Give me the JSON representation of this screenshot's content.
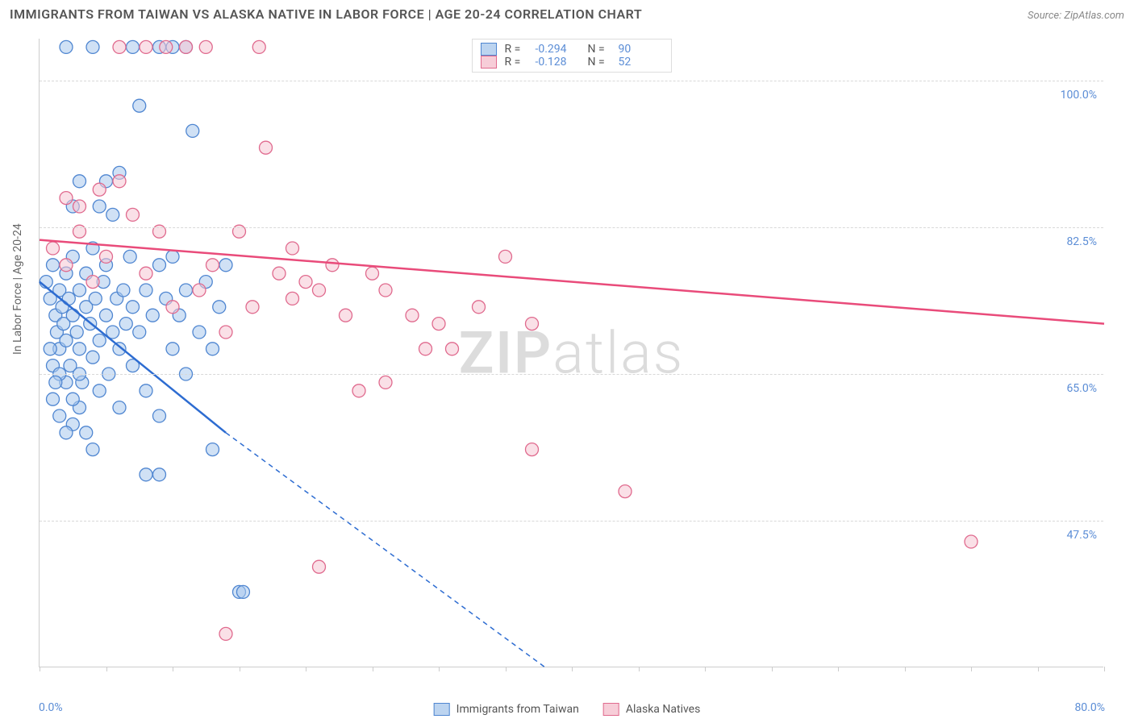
{
  "title": "IMMIGRANTS FROM TAIWAN VS ALASKA NATIVE IN LABOR FORCE | AGE 20-24 CORRELATION CHART",
  "source": "Source: ZipAtlas.com",
  "watermark_a": "ZIP",
  "watermark_b": "atlas",
  "chart": {
    "type": "scatter",
    "background_color": "#ffffff",
    "grid_color": "#d8d8d8",
    "axis_color": "#cccccc",
    "tick_label_color": "#5b8dd6",
    "axis_title_color": "#666666",
    "xlim": [
      0,
      80
    ],
    "ylim": [
      30,
      105
    ],
    "x_tick_positions": [
      0,
      5,
      10,
      15,
      20,
      25,
      30,
      35,
      40,
      45,
      50,
      55,
      60,
      65,
      70,
      75,
      80
    ],
    "x_tick_labels": {
      "left": "0.0%",
      "right": "80.0%"
    },
    "y_gridlines": [
      47.5,
      65.0,
      82.5,
      100.0
    ],
    "y_tick_labels": [
      "47.5%",
      "65.0%",
      "82.5%",
      "100.0%"
    ],
    "y_axis_title": "In Labor Force | Age 20-24",
    "legend_top": [
      {
        "swatch_fill": "#bcd4f0",
        "swatch_stroke": "#4f86d1",
        "r": "-0.294",
        "n": "90"
      },
      {
        "swatch_fill": "#f7cdd8",
        "swatch_stroke": "#e06a8e",
        "r": "-0.128",
        "n": "52"
      }
    ],
    "legend_bottom": [
      {
        "swatch_fill": "#bcd4f0",
        "swatch_stroke": "#4f86d1",
        "label": "Immigrants from Taiwan"
      },
      {
        "swatch_fill": "#f7cdd8",
        "swatch_stroke": "#e06a8e",
        "label": "Alaska Natives"
      }
    ],
    "series": [
      {
        "name": "Immigrants from Taiwan",
        "marker_fill": "#a9c8ec",
        "marker_stroke": "#4f86d1",
        "marker_radius": 8,
        "marker_opacity": 0.55,
        "trend_color": "#2d6cd1",
        "trend_width": 2.5,
        "trend_solid": {
          "x1": 0,
          "y1": 76,
          "x2": 14,
          "y2": 58
        },
        "trend_dashed": {
          "x1": 14,
          "y1": 58,
          "x2": 38,
          "y2": 30
        },
        "points": [
          [
            0.5,
            76
          ],
          [
            0.8,
            74
          ],
          [
            1.0,
            78
          ],
          [
            1.2,
            72
          ],
          [
            1.3,
            70
          ],
          [
            1.5,
            75
          ],
          [
            1.5,
            68
          ],
          [
            1.7,
            73
          ],
          [
            1.8,
            71
          ],
          [
            2.0,
            77
          ],
          [
            2.0,
            69
          ],
          [
            2.2,
            74
          ],
          [
            2.3,
            66
          ],
          [
            2.5,
            72
          ],
          [
            2.5,
            79
          ],
          [
            2.8,
            70
          ],
          [
            3.0,
            75
          ],
          [
            3.0,
            68
          ],
          [
            3.2,
            64
          ],
          [
            3.5,
            73
          ],
          [
            3.5,
            77
          ],
          [
            3.8,
            71
          ],
          [
            4.0,
            67
          ],
          [
            4.0,
            80
          ],
          [
            4.2,
            74
          ],
          [
            4.5,
            69
          ],
          [
            4.5,
            63
          ],
          [
            4.8,
            76
          ],
          [
            5.0,
            72
          ],
          [
            5.0,
            78
          ],
          [
            5.2,
            65
          ],
          [
            5.5,
            70
          ],
          [
            5.5,
            84
          ],
          [
            5.8,
            74
          ],
          [
            6.0,
            68
          ],
          [
            6.0,
            61
          ],
          [
            6.3,
            75
          ],
          [
            6.5,
            71
          ],
          [
            6.8,
            79
          ],
          [
            7.0,
            66
          ],
          [
            7.0,
            73
          ],
          [
            7.5,
            97
          ],
          [
            7.5,
            70
          ],
          [
            8.0,
            75
          ],
          [
            8.0,
            63
          ],
          [
            8.5,
            72
          ],
          [
            9.0,
            78
          ],
          [
            9.0,
            60
          ],
          [
            9.5,
            74
          ],
          [
            10.0,
            68
          ],
          [
            10.0,
            79
          ],
          [
            10.5,
            72
          ],
          [
            11.0,
            65
          ],
          [
            11.0,
            75
          ],
          [
            11.5,
            94
          ],
          [
            12.0,
            70
          ],
          [
            12.5,
            76
          ],
          [
            13.0,
            68
          ],
          [
            13.0,
            56
          ],
          [
            13.5,
            73
          ],
          [
            14.0,
            78
          ],
          [
            1.0,
            62
          ],
          [
            1.5,
            60
          ],
          [
            2.0,
            64
          ],
          [
            2.5,
            59
          ],
          [
            3.0,
            61
          ],
          [
            3.5,
            58
          ],
          [
            4.0,
            56
          ],
          [
            2.0,
            58
          ],
          [
            2.5,
            62
          ],
          [
            3.0,
            65
          ],
          [
            1.0,
            66
          ],
          [
            1.5,
            65
          ],
          [
            0.8,
            68
          ],
          [
            1.2,
            64
          ],
          [
            2.0,
            104
          ],
          [
            7.0,
            104
          ],
          [
            9.0,
            104
          ],
          [
            10.0,
            104
          ],
          [
            11.0,
            104
          ],
          [
            4.0,
            104
          ],
          [
            15.0,
            39
          ],
          [
            15.3,
            39
          ],
          [
            5.0,
            88
          ],
          [
            6.0,
            89
          ],
          [
            8.0,
            53
          ],
          [
            9.0,
            53
          ],
          [
            3.0,
            88
          ],
          [
            2.5,
            85
          ],
          [
            4.5,
            85
          ]
        ]
      },
      {
        "name": "Alaska Natives",
        "marker_fill": "#f5c6d3",
        "marker_stroke": "#e06a8e",
        "marker_radius": 8,
        "marker_opacity": 0.55,
        "trend_color": "#e94b7a",
        "trend_width": 2.5,
        "trend_solid": {
          "x1": 0,
          "y1": 81,
          "x2": 80,
          "y2": 71
        },
        "points": [
          [
            1.0,
            80
          ],
          [
            2.0,
            78
          ],
          [
            3.0,
            82
          ],
          [
            4.0,
            76
          ],
          [
            5.0,
            79
          ],
          [
            6.0,
            88
          ],
          [
            7.0,
            84
          ],
          [
            8.0,
            77
          ],
          [
            9.0,
            82
          ],
          [
            10.0,
            73
          ],
          [
            12.0,
            75
          ],
          [
            13.0,
            78
          ],
          [
            14.0,
            70
          ],
          [
            15.0,
            82
          ],
          [
            16.0,
            73
          ],
          [
            17.0,
            92
          ],
          [
            18.0,
            77
          ],
          [
            19.0,
            74
          ],
          [
            20.0,
            76
          ],
          [
            22.0,
            78
          ],
          [
            23.0,
            72
          ],
          [
            24.0,
            63
          ],
          [
            25.0,
            77
          ],
          [
            26.0,
            75
          ],
          [
            28.0,
            72
          ],
          [
            30.0,
            71
          ],
          [
            31.0,
            68
          ],
          [
            33.0,
            73
          ],
          [
            35.0,
            79
          ],
          [
            37.0,
            71
          ],
          [
            40.0,
            104
          ],
          [
            42.0,
            104
          ],
          [
            44.0,
            104
          ],
          [
            45.5,
            104
          ],
          [
            37.0,
            56
          ],
          [
            6.0,
            104
          ],
          [
            8.0,
            104
          ],
          [
            9.5,
            104
          ],
          [
            11.0,
            104
          ],
          [
            12.5,
            104
          ],
          [
            16.5,
            104
          ],
          [
            44.0,
            51
          ],
          [
            21.0,
            42
          ],
          [
            14.0,
            34
          ],
          [
            70.0,
            45
          ],
          [
            2.0,
            86
          ],
          [
            3.0,
            85
          ],
          [
            4.5,
            87
          ],
          [
            26.0,
            64
          ],
          [
            19.0,
            80
          ],
          [
            21.0,
            75
          ],
          [
            29.0,
            68
          ]
        ]
      }
    ]
  }
}
